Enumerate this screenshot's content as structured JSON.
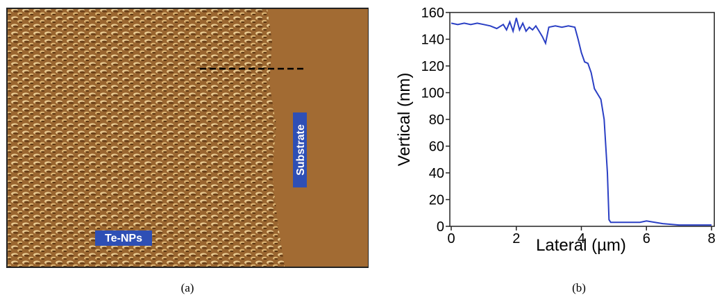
{
  "panel_a": {
    "labels": [
      "Te-NPs",
      "Substrate"
    ],
    "caption": "(a)"
  },
  "chart_data": {
    "type": "line",
    "xlabel": "Lateral (µm)",
    "ylabel": "Vertical (nm)",
    "x": [
      0,
      0.2,
      0.4,
      0.6,
      0.8,
      1.0,
      1.2,
      1.4,
      1.6,
      1.7,
      1.8,
      1.9,
      2.0,
      2.1,
      2.2,
      2.3,
      2.4,
      2.5,
      2.6,
      2.7,
      2.8,
      2.9,
      3.0,
      3.2,
      3.4,
      3.6,
      3.8,
      3.9,
      4.0,
      4.1,
      4.2,
      4.3,
      4.4,
      4.5,
      4.6,
      4.7,
      4.8,
      4.85,
      4.9,
      5.0,
      5.5,
      5.8,
      6.0,
      6.5,
      7.0,
      7.5,
      8.0
    ],
    "series": [
      {
        "color": "#2a3fc4",
        "values": [
          152,
          151,
          152,
          151,
          152,
          151,
          150,
          148,
          151,
          147,
          153,
          146,
          156,
          147,
          152,
          146,
          149,
          147,
          150,
          146,
          142,
          137,
          149,
          150,
          149,
          150,
          149,
          140,
          130,
          123,
          122,
          115,
          103,
          99,
          95,
          80,
          40,
          5,
          3,
          3,
          3,
          3,
          4,
          2,
          1,
          1,
          1
        ]
      }
    ],
    "xlim": [
      0,
      8
    ],
    "ylim": [
      0,
      160
    ],
    "xticks": [
      0,
      2,
      4,
      6,
      8
    ],
    "yticks": [
      0,
      20,
      40,
      60,
      80,
      100,
      120,
      140,
      160
    ]
  },
  "caption_b": "(b)"
}
